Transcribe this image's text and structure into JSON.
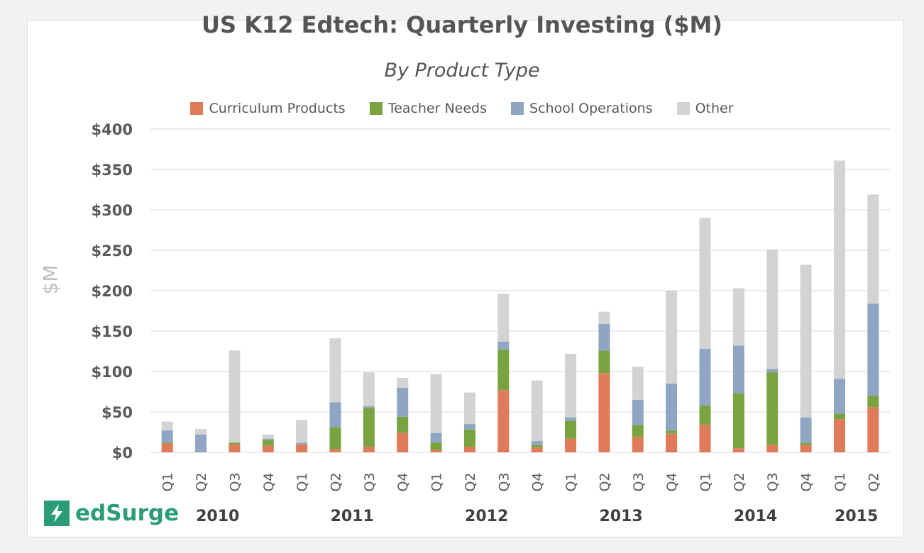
{
  "chart_data": {
    "type": "bar",
    "stacked": true,
    "title": "US K12 Edtech: Quarterly Investing ($M)",
    "subtitle": "By Product Type",
    "ylabel": "$M",
    "ylim": [
      0,
      400
    ],
    "yticks": [
      "$0",
      "$50",
      "$100",
      "$150",
      "$200",
      "$250",
      "$300",
      "$350",
      "$400"
    ],
    "ytick_values": [
      0,
      50,
      100,
      150,
      200,
      250,
      300,
      350,
      400
    ],
    "grid": true,
    "legend_position": "top",
    "categories": [
      "Q1",
      "Q2",
      "Q3",
      "Q4",
      "Q1",
      "Q2",
      "Q3",
      "Q4",
      "Q1",
      "Q2",
      "Q3",
      "Q4",
      "Q1",
      "Q2",
      "Q3",
      "Q4",
      "Q1",
      "Q2",
      "Q3",
      "Q4",
      "Q1",
      "Q2"
    ],
    "years": [
      "2010",
      "2011",
      "2012",
      "2013",
      "2014",
      "2015"
    ],
    "series": [
      {
        "name": "Curriculum Products",
        "color": "#e07b5a",
        "values": [
          11,
          0,
          10,
          8,
          10,
          4,
          7,
          24,
          3,
          7,
          77,
          6,
          17,
          98,
          19,
          23,
          34,
          5,
          9,
          9,
          41,
          56
        ]
      },
      {
        "name": "Teacher Needs",
        "color": "#7aa33f",
        "values": [
          1,
          0,
          2,
          7,
          0,
          27,
          48,
          20,
          9,
          21,
          50,
          3,
          22,
          28,
          15,
          4,
          24,
          68,
          90,
          3,
          7,
          14
        ]
      },
      {
        "name": "School Operations",
        "color": "#8ea6c4",
        "values": [
          15,
          22,
          0,
          2,
          2,
          31,
          2,
          36,
          12,
          7,
          10,
          5,
          4,
          33,
          31,
          58,
          70,
          59,
          4,
          31,
          43,
          114
        ]
      },
      {
        "name": "Other",
        "color": "#d3d3d3",
        "values": [
          11,
          7,
          114,
          5,
          28,
          79,
          42,
          12,
          73,
          39,
          59,
          75,
          79,
          15,
          41,
          115,
          162,
          71,
          148,
          189,
          270,
          135
        ]
      }
    ]
  },
  "logo": {
    "text": "edSurge",
    "icon": "lightning-bolt-icon",
    "color": "#2a9d78"
  }
}
